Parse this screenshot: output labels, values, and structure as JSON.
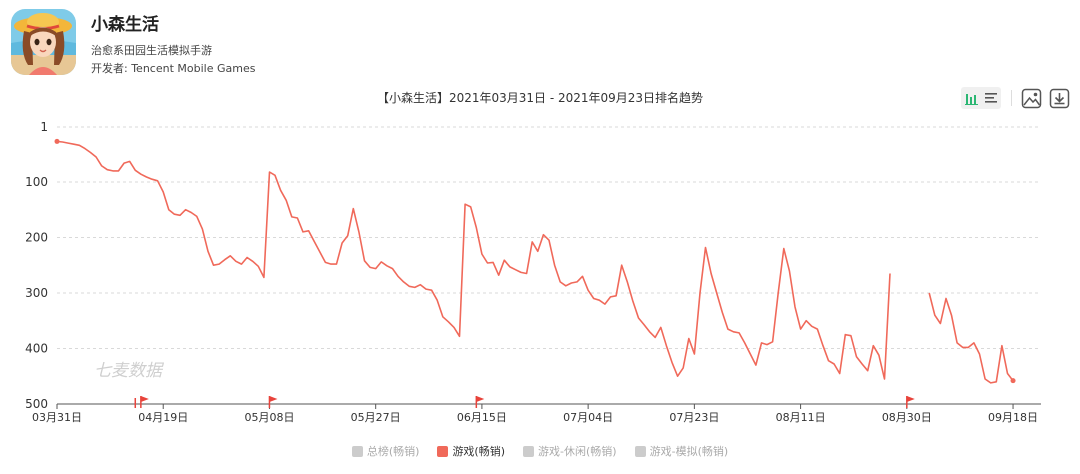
{
  "app": {
    "name": "小森生活",
    "subtitle": "治愈系田园生活模拟手游",
    "developer": "开发者: Tencent Mobile Games"
  },
  "watermark": "七麦数据",
  "colors": {
    "series": "#f0695a",
    "inactive": "#cccccc",
    "accent": "#2bb673"
  },
  "icons": {
    "bar": "bar-chart-icon",
    "list": "list-icon",
    "image": "image-icon",
    "download": "download-icon"
  },
  "chart_data": {
    "type": "line",
    "title": "【小森生活】2021年03月31日 - 2021年09月23日排名趋势",
    "y_axis": {
      "ticks": [
        "1",
        "100",
        "200",
        "300",
        "400",
        "500"
      ],
      "range": [
        500,
        1
      ],
      "inverted": true
    },
    "x_axis": {
      "ticks": [
        "03月31日",
        "04月19日",
        "05月08日",
        "05月27日",
        "06月15日",
        "07月04日",
        "07月23日",
        "08月11日",
        "08月30日",
        "09月18日"
      ],
      "range": [
        "2021-03-31",
        "2021-09-23"
      ]
    },
    "grid": "horizontal-dashed",
    "legend_position": "bottom",
    "legend": [
      {
        "label": "总榜(畅销)",
        "active": false
      },
      {
        "label": "游戏(畅销)",
        "active": true
      },
      {
        "label": "游戏-休闲(畅销)",
        "active": false
      },
      {
        "label": "游戏-模拟(畅销)",
        "active": false
      }
    ],
    "flags": [
      "2021-04-15",
      "2021-05-08",
      "2021-06-14",
      "2021-08-30"
    ],
    "series": [
      {
        "name": "游戏(畅销)",
        "points": [
          [
            "2021-03-31",
            27
          ],
          [
            "2021-04-01",
            28
          ],
          [
            "2021-04-02",
            30
          ],
          [
            "2021-04-03",
            32
          ],
          [
            "2021-04-04",
            34
          ],
          [
            "2021-04-05",
            40
          ],
          [
            "2021-04-06",
            47
          ],
          [
            "2021-04-07",
            55
          ],
          [
            "2021-04-08",
            71
          ],
          [
            "2021-04-09",
            78
          ],
          [
            "2021-04-10",
            80
          ],
          [
            "2021-04-11",
            80
          ],
          [
            "2021-04-12",
            66
          ],
          [
            "2021-04-13",
            63
          ],
          [
            "2021-04-14",
            79
          ],
          [
            "2021-04-15",
            86
          ],
          [
            "2021-04-16",
            91
          ],
          [
            "2021-04-17",
            95
          ],
          [
            "2021-04-18",
            98
          ],
          [
            "2021-04-19",
            118
          ],
          [
            "2021-04-20",
            150
          ],
          [
            "2021-04-21",
            158
          ],
          [
            "2021-04-22",
            160
          ],
          [
            "2021-04-23",
            150
          ],
          [
            "2021-04-24",
            155
          ],
          [
            "2021-04-25",
            162
          ],
          [
            "2021-04-26",
            185
          ],
          [
            "2021-04-27",
            225
          ],
          [
            "2021-04-28",
            250
          ],
          [
            "2021-04-29",
            248
          ],
          [
            "2021-04-30",
            240
          ],
          [
            "2021-05-01",
            233
          ],
          [
            "2021-05-02",
            243
          ],
          [
            "2021-05-03",
            248
          ],
          [
            "2021-05-04",
            236
          ],
          [
            "2021-05-05",
            243
          ],
          [
            "2021-05-06",
            252
          ],
          [
            "2021-05-07",
            272
          ],
          [
            "2021-05-08",
            82
          ],
          [
            "2021-05-09",
            88
          ],
          [
            "2021-05-10",
            115
          ],
          [
            "2021-05-11",
            133
          ],
          [
            "2021-05-12",
            163
          ],
          [
            "2021-05-13",
            165
          ],
          [
            "2021-05-14",
            190
          ],
          [
            "2021-05-15",
            188
          ],
          [
            "2021-05-16",
            207
          ],
          [
            "2021-05-17",
            226
          ],
          [
            "2021-05-18",
            245
          ],
          [
            "2021-05-19",
            248
          ],
          [
            "2021-05-20",
            248
          ],
          [
            "2021-05-21",
            210
          ],
          [
            "2021-05-22",
            197
          ],
          [
            "2021-05-23",
            148
          ],
          [
            "2021-05-24",
            190
          ],
          [
            "2021-05-25",
            242
          ],
          [
            "2021-05-26",
            254
          ],
          [
            "2021-05-27",
            256
          ],
          [
            "2021-05-28",
            244
          ],
          [
            "2021-05-29",
            251
          ],
          [
            "2021-05-30",
            256
          ],
          [
            "2021-05-31",
            270
          ],
          [
            "2021-06-01",
            280
          ],
          [
            "2021-06-02",
            288
          ],
          [
            "2021-06-03",
            290
          ],
          [
            "2021-06-04",
            285
          ],
          [
            "2021-06-05",
            293
          ],
          [
            "2021-06-06",
            295
          ],
          [
            "2021-06-07",
            313
          ],
          [
            "2021-06-08",
            343
          ],
          [
            "2021-06-09",
            352
          ],
          [
            "2021-06-10",
            362
          ],
          [
            "2021-06-11",
            378
          ],
          [
            "2021-06-12",
            140
          ],
          [
            "2021-06-13",
            145
          ],
          [
            "2021-06-14",
            182
          ],
          [
            "2021-06-15",
            230
          ],
          [
            "2021-06-16",
            246
          ],
          [
            "2021-06-17",
            245
          ],
          [
            "2021-06-18",
            268
          ],
          [
            "2021-06-19",
            241
          ],
          [
            "2021-06-20",
            253
          ],
          [
            "2021-06-21",
            258
          ],
          [
            "2021-06-22",
            263
          ],
          [
            "2021-06-23",
            265
          ],
          [
            "2021-06-24",
            208
          ],
          [
            "2021-06-25",
            225
          ],
          [
            "2021-06-26",
            195
          ],
          [
            "2021-06-27",
            205
          ],
          [
            "2021-06-28",
            250
          ],
          [
            "2021-06-29",
            280
          ],
          [
            "2021-06-30",
            287
          ],
          [
            "2021-07-01",
            282
          ],
          [
            "2021-07-02",
            280
          ],
          [
            "2021-07-03",
            270
          ],
          [
            "2021-07-04",
            295
          ],
          [
            "2021-07-05",
            310
          ],
          [
            "2021-07-06",
            313
          ],
          [
            "2021-07-07",
            320
          ],
          [
            "2021-07-08",
            307
          ],
          [
            "2021-07-09",
            305
          ],
          [
            "2021-07-10",
            250
          ],
          [
            "2021-07-11",
            280
          ],
          [
            "2021-07-12",
            315
          ],
          [
            "2021-07-13",
            345
          ],
          [
            "2021-07-14",
            357
          ],
          [
            "2021-07-15",
            370
          ],
          [
            "2021-07-16",
            380
          ],
          [
            "2021-07-17",
            362
          ],
          [
            "2021-07-18",
            395
          ],
          [
            "2021-07-19",
            425
          ],
          [
            "2021-07-20",
            450
          ],
          [
            "2021-07-21",
            435
          ],
          [
            "2021-07-22",
            382
          ],
          [
            "2021-07-23",
            410
          ],
          [
            "2021-07-24",
            300
          ],
          [
            "2021-07-25",
            218
          ],
          [
            "2021-07-26",
            265
          ],
          [
            "2021-07-27",
            300
          ],
          [
            "2021-07-28",
            335
          ],
          [
            "2021-07-29",
            365
          ],
          [
            "2021-07-30",
            370
          ],
          [
            "2021-07-31",
            372
          ],
          [
            "2021-08-01",
            390
          ],
          [
            "2021-08-02",
            410
          ],
          [
            "2021-08-03",
            430
          ],
          [
            "2021-08-04",
            390
          ],
          [
            "2021-08-05",
            393
          ],
          [
            "2021-08-06",
            388
          ],
          [
            "2021-08-07",
            300
          ],
          [
            "2021-08-08",
            220
          ],
          [
            "2021-08-09",
            260
          ],
          [
            "2021-08-10",
            325
          ],
          [
            "2021-08-11",
            365
          ],
          [
            "2021-08-12",
            350
          ],
          [
            "2021-08-13",
            360
          ],
          [
            "2021-08-14",
            365
          ],
          [
            "2021-08-15",
            395
          ],
          [
            "2021-08-16",
            422
          ],
          [
            "2021-08-17",
            428
          ],
          [
            "2021-08-18",
            445
          ],
          [
            "2021-08-19",
            375
          ],
          [
            "2021-08-20",
            377
          ],
          [
            "2021-08-21",
            415
          ],
          [
            "2021-08-22",
            428
          ],
          [
            "2021-08-23",
            440
          ],
          [
            "2021-08-24",
            395
          ],
          [
            "2021-08-25",
            412
          ],
          [
            "2021-08-26",
            455
          ],
          [
            "2021-08-27",
            265
          ],
          null,
          [
            "2021-09-03",
            300
          ],
          [
            "2021-09-04",
            340
          ],
          [
            "2021-09-05",
            355
          ],
          [
            "2021-09-06",
            310
          ],
          [
            "2021-09-07",
            340
          ],
          [
            "2021-09-08",
            390
          ],
          [
            "2021-09-09",
            398
          ],
          [
            "2021-09-10",
            398
          ],
          [
            "2021-09-11",
            390
          ],
          [
            "2021-09-12",
            410
          ],
          [
            "2021-09-13",
            455
          ],
          [
            "2021-09-14",
            462
          ],
          [
            "2021-09-15",
            460
          ],
          [
            "2021-09-16",
            395
          ],
          [
            "2021-09-17",
            445
          ],
          [
            "2021-09-18",
            458
          ]
        ]
      }
    ]
  }
}
